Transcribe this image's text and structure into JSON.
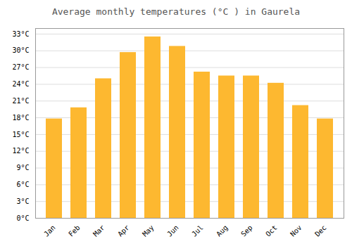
{
  "chart_data": {
    "type": "bar",
    "title": "Average monthly temperatures (°C ) in Gaurela",
    "categories": [
      "Jan",
      "Feb",
      "Mar",
      "Apr",
      "May",
      "Jun",
      "Jul",
      "Aug",
      "Sep",
      "Oct",
      "Nov",
      "Dec"
    ],
    "values": [
      17.8,
      19.8,
      25.0,
      29.7,
      32.5,
      30.8,
      26.2,
      25.5,
      25.5,
      24.2,
      20.2,
      17.8
    ],
    "color": "#FDB830",
    "ylim": [
      0,
      34
    ],
    "yticks": [
      {
        "value": 0,
        "label": "0°C"
      },
      {
        "value": 3,
        "label": "3°C"
      },
      {
        "value": 6,
        "label": "6°C"
      },
      {
        "value": 9,
        "label": "9°C"
      },
      {
        "value": 12,
        "label": "12°C"
      },
      {
        "value": 15,
        "label": "15°C"
      },
      {
        "value": 18,
        "label": "18°C"
      },
      {
        "value": 21,
        "label": "21°C"
      },
      {
        "value": 24,
        "label": "24°C"
      },
      {
        "value": 27,
        "label": "27°C"
      },
      {
        "value": 30,
        "label": "30°C"
      },
      {
        "value": 33,
        "label": "33°C"
      }
    ],
    "grid": true
  }
}
